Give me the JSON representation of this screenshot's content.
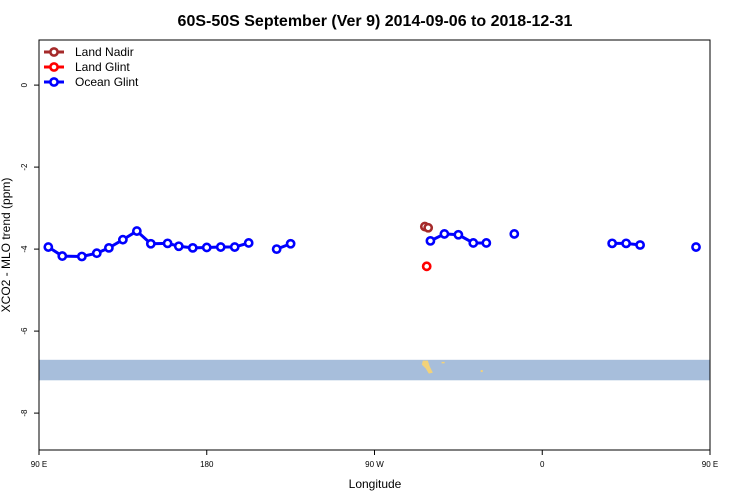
{
  "chart_data": {
    "type": "line",
    "title": "60S-50S September (Ver 9)   2014-09-06 to 2018-12-31",
    "xlabel": "Longitude",
    "ylabel": "XCO2 - MLO trend (ppm)",
    "xlim": [
      90,
      450
    ],
    "ylim": [
      -8.9,
      1.1
    ],
    "x_ticks": [
      {
        "value": 90,
        "label": "90 E"
      },
      {
        "value": 180,
        "label": "180"
      },
      {
        "value": 270,
        "label": "90 W"
      },
      {
        "value": 360,
        "label": "0"
      },
      {
        "value": 450,
        "label": "90 E"
      },
      {
        "value": 540,
        "label": "180"
      }
    ],
    "y_ticks": [
      0,
      -2,
      -4,
      -6,
      -8
    ],
    "grid": false,
    "legend_position": "top-left",
    "map_band": {
      "y_top": -6.7,
      "y_bottom": -7.2,
      "color": "#a7bedb",
      "land_color": "#f2d27a"
    },
    "series": [
      {
        "name": "Land Nadir",
        "color": "#a52a2a",
        "segments": [
          [
            [
              297,
              -3.45
            ],
            [
              298.8,
              -3.48
            ]
          ]
        ]
      },
      {
        "name": "Land Glint",
        "color": "#ff0000",
        "segments": [
          [
            [
              298,
              -4.42
            ]
          ]
        ]
      },
      {
        "name": "Ocean Glint",
        "color": "#0000ff",
        "segments": [
          [
            [
              95,
              -3.95
            ],
            [
              102.5,
              -4.17
            ],
            [
              113,
              -4.18
            ],
            [
              121,
              -4.1
            ],
            [
              127.5,
              -3.97
            ],
            [
              135,
              -3.77
            ],
            [
              142.5,
              -3.56
            ],
            [
              150,
              -3.87
            ],
            [
              159,
              -3.86
            ],
            [
              165,
              -3.93
            ],
            [
              172.5,
              -3.97
            ],
            [
              180,
              -3.96
            ],
            [
              187.5,
              -3.95
            ],
            [
              195,
              -3.95
            ],
            [
              202.5,
              -3.85
            ]
          ],
          [
            [
              217.5,
              -4.0
            ],
            [
              225,
              -3.87
            ]
          ],
          [
            [
              300,
              -3.8
            ],
            [
              307.5,
              -3.63
            ],
            [
              315,
              -3.65
            ],
            [
              323,
              -3.85
            ],
            [
              330,
              -3.85
            ]
          ],
          [
            [
              345,
              -3.63
            ]
          ],
          [
            [
              397.5,
              -3.86
            ],
            [
              405,
              -3.86
            ],
            [
              412.5,
              -3.9
            ]
          ],
          [
            [
              442.5,
              -3.95
            ]
          ]
        ]
      }
    ],
    "wrapped_segments": [
      {
        "series": "Ocean Glint",
        "x_offset": 360,
        "from": 0
      }
    ]
  }
}
